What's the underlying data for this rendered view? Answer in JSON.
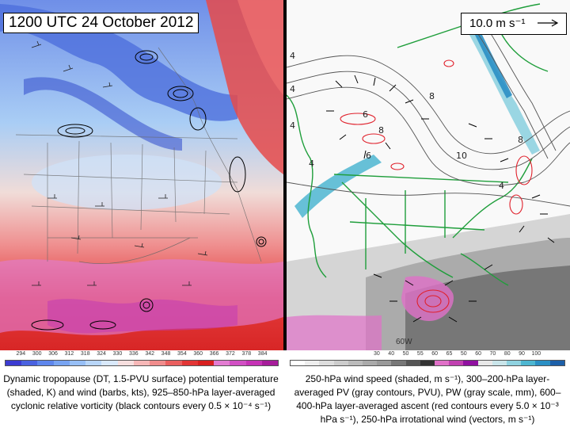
{
  "left_panel": {
    "title": "1200 UTC 24 October 2012",
    "colorbar_ticks": [
      "294",
      "300",
      "306",
      "312",
      "318",
      "324",
      "330",
      "336",
      "342",
      "348",
      "354",
      "360",
      "366",
      "372",
      "378",
      "384"
    ],
    "colorbar_colors": [
      "#3b3bd1",
      "#4a62e0",
      "#5e86ec",
      "#78a4f2",
      "#97bff6",
      "#b8d6f9",
      "#d9e9fb",
      "#f6dede",
      "#f6b7b7",
      "#f08c8c",
      "#ea5f5f",
      "#e23535",
      "#d81f1f",
      "#e37cd2",
      "#d14fc4",
      "#c532b5",
      "#a61c9a"
    ],
    "caption": "Dynamic tropopause (DT, 1.5-PVU surface) potential temperature (shaded, K) and wind (barbs, kts), 925–850-hPa layer-averaged cyclonic relative vorticity (black contours every 0.5 × 10⁻⁴ s⁻¹)"
  },
  "right_panel": {
    "scale_label": "10.0 m s⁻¹",
    "contour_labels": [
      "4",
      "4",
      "4",
      "4",
      "6",
      "6",
      "8",
      "8",
      "10",
      "8",
      "4"
    ],
    "pw_label": "60W",
    "colorbar_ticks": [
      "",
      "",
      "",
      "",
      "",
      "30",
      "40",
      "50",
      "55",
      "60",
      "65",
      "50",
      "60",
      "70",
      "80",
      "90",
      "100"
    ],
    "colorbar_colors": [
      "#ffffff",
      "#eeeeee",
      "#dddddd",
      "#cccccc",
      "#bbbbbb",
      "#aaaaaa",
      "#999999",
      "#777777",
      "#555555",
      "#333333",
      "#e070c8",
      "#c040b0",
      "#9010a0",
      "#e8e8e8",
      "#c9e5ea",
      "#8fd2e0",
      "#4db6d1",
      "#2a8fc4",
      "#1c5fa8"
    ],
    "caption": "250-hPa wind speed (shaded, m s⁻¹), 300–200-hPa layer-averaged PV (gray contours, PVU), PW (gray scale, mm), 600–400-hPa layer-averaged ascent (red contours every 5.0 × 10⁻³ hPa s⁻¹), 250-hPa irrotational wind (vectors, m s⁻¹)"
  }
}
